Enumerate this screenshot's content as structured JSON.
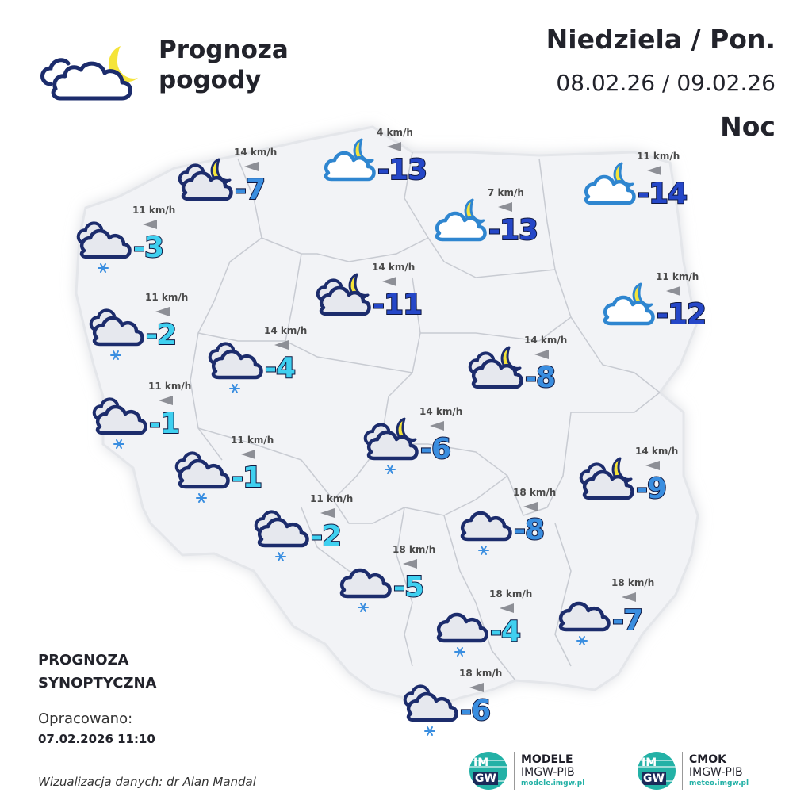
{
  "header": {
    "title_line1": "Prognoza",
    "title_line2": "pogody",
    "day": "Niedziela / Pon.",
    "dates": "08.02.26 / 09.02.26",
    "time_of_day": "Noc",
    "icon": "cloud-moon-icon"
  },
  "footer": {
    "synoptic_line1": "PROGNOZA",
    "synoptic_line2": "SYNOPTYCZNA",
    "prepared_label": "Opracowano:",
    "prepared_date": "07.02.2026 11:10",
    "credit": "Wizualizacja danych: dr Alan Mandal"
  },
  "logos": [
    {
      "name": "MODELE",
      "org": "IMGW-PIB",
      "url": "modele.imgw.pl",
      "mark_top": "IM",
      "mark_bottom": "GW"
    },
    {
      "name": "CMOK",
      "org": "IMGW-PIB",
      "url": "meteo.imgw.pl",
      "mark_top": "IM",
      "mark_bottom": "GW"
    }
  ],
  "colors": {
    "map_fill": "#f2f3f6",
    "border": "#c9ccd3",
    "icon_outline": "#1c2c6c",
    "icon_outline_light": "#2f86d0",
    "moon": "#f5e43a",
    "temp_cold": "#2547c8",
    "temp_mid": "#3a8ee0",
    "temp_mild": "#3fd0f0"
  },
  "stations": [
    {
      "wind": "4 km/h",
      "temp": "-13",
      "icon": "cloud-moon-icon",
      "style": "light",
      "tcolor": "#2547c8"
    },
    {
      "wind": "14 km/h",
      "temp": "-7",
      "icon": "cloudy-moon-icon",
      "style": "dark",
      "tcolor": "#3a8ee0"
    },
    {
      "wind": "11 km/h",
      "temp": "-14",
      "icon": "cloud-moon-icon",
      "style": "light",
      "tcolor": "#2547c8"
    },
    {
      "wind": "7 km/h",
      "temp": "-13",
      "icon": "cloud-moon-icon",
      "style": "light",
      "tcolor": "#2547c8"
    },
    {
      "wind": "11 km/h",
      "temp": "-3",
      "icon": "cloudy-snow-icon",
      "style": "dark",
      "tcolor": "#3fd0f0"
    },
    {
      "wind": "14 km/h",
      "temp": "-11",
      "icon": "cloudy-moon-icon",
      "style": "dark",
      "tcolor": "#2547c8"
    },
    {
      "wind": "11 km/h",
      "temp": "-12",
      "icon": "cloud-moon-icon",
      "style": "light",
      "tcolor": "#2547c8"
    },
    {
      "wind": "11 km/h",
      "temp": "-2",
      "icon": "cloudy-snow-icon",
      "style": "dark",
      "tcolor": "#3fd0f0"
    },
    {
      "wind": "14 km/h",
      "temp": "-4",
      "icon": "cloudy-snow-icon",
      "style": "dark",
      "tcolor": "#3fd0f0"
    },
    {
      "wind": "14 km/h",
      "temp": "-8",
      "icon": "cloudy-moon-icon",
      "style": "dark",
      "tcolor": "#3a8ee0"
    },
    {
      "wind": "11 km/h",
      "temp": "-1",
      "icon": "cloudy-snow-icon",
      "style": "dark",
      "tcolor": "#3fd0f0"
    },
    {
      "wind": "14 km/h",
      "temp": "-6",
      "icon": "cloudy-moon-snow-icon",
      "style": "dark",
      "tcolor": "#3a8ee0"
    },
    {
      "wind": "11 km/h",
      "temp": "-1",
      "icon": "cloudy-snow-icon",
      "style": "dark",
      "tcolor": "#3fd0f0"
    },
    {
      "wind": "14 km/h",
      "temp": "-9",
      "icon": "cloudy-moon-icon",
      "style": "dark",
      "tcolor": "#3a8ee0"
    },
    {
      "wind": "18 km/h",
      "temp": "-8",
      "icon": "cloud-snow-icon",
      "style": "dark",
      "tcolor": "#3a8ee0"
    },
    {
      "wind": "11 km/h",
      "temp": "-2",
      "icon": "cloudy-snow-icon",
      "style": "dark",
      "tcolor": "#3fd0f0"
    },
    {
      "wind": "18 km/h",
      "temp": "-5",
      "icon": "cloud-snow-icon",
      "style": "dark",
      "tcolor": "#3fd0f0"
    },
    {
      "wind": "18 km/h",
      "temp": "-4",
      "icon": "cloud-snow-icon",
      "style": "dark",
      "tcolor": "#3fd0f0"
    },
    {
      "wind": "18 km/h",
      "temp": "-7",
      "icon": "cloud-snow-icon",
      "style": "dark",
      "tcolor": "#3a8ee0"
    },
    {
      "wind": "18 km/h",
      "temp": "-6",
      "icon": "cloudy-snow-icon",
      "style": "dark",
      "tcolor": "#3a8ee0"
    }
  ]
}
